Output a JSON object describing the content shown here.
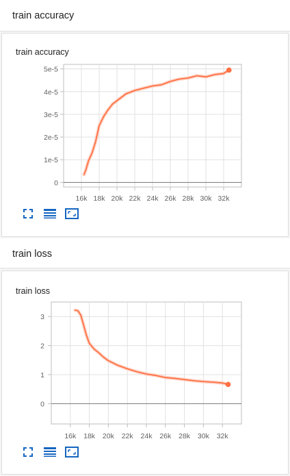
{
  "colors": {
    "accent": "#ff7043",
    "accent_light": "#ffccbc",
    "icon_blue": "#1565c0",
    "grid": "#e0e0e0",
    "axis": "#bdbdbd",
    "zero_line": "#757575"
  },
  "sections": [
    {
      "header": "train accuracy",
      "card_title": "train accuracy",
      "toolbar": [
        "fit-to-screen-icon",
        "data-table-icon",
        "fit-domain-icon"
      ]
    },
    {
      "header": "train loss",
      "card_title": "train loss",
      "toolbar": [
        "fit-to-screen-icon",
        "data-table-icon",
        "fit-domain-icon"
      ]
    }
  ],
  "chart_data": [
    {
      "type": "line",
      "title": "train accuracy",
      "xlabel": "",
      "ylabel": "",
      "xlim": [
        14000,
        34000
      ],
      "ylim": [
        -2e-06,
        5.2e-05
      ],
      "x_ticks": [
        "16k",
        "18k",
        "20k",
        "22k",
        "24k",
        "26k",
        "28k",
        "30k",
        "32k"
      ],
      "y_ticks": [
        "0",
        "1e-5",
        "2e-5",
        "3e-5",
        "4e-5",
        "5e-5"
      ],
      "grid": true,
      "series": [
        {
          "x": [
            16300,
            16500,
            16800,
            17200,
            17600,
            18000,
            18500,
            19000,
            19500,
            20000,
            20500,
            21000,
            22000,
            23000,
            24000,
            25000,
            26000,
            27000,
            28000,
            29000,
            30000,
            31000,
            32000,
            32600
          ],
          "values": [
            3.5e-06,
            5.5e-06,
            9.5e-06,
            1.3e-05,
            1.8e-05,
            2.5e-05,
            2.9e-05,
            3.2e-05,
            3.45e-05,
            3.6e-05,
            3.75e-05,
            3.9e-05,
            4.05e-05,
            4.15e-05,
            4.25e-05,
            4.3e-05,
            4.45e-05,
            4.55e-05,
            4.6e-05,
            4.7e-05,
            4.65e-05,
            4.75e-05,
            4.8e-05,
            4.95e-05
          ]
        }
      ]
    },
    {
      "type": "line",
      "title": "train loss",
      "xlabel": "",
      "ylabel": "",
      "xlim": [
        14000,
        34000
      ],
      "ylim": [
        -0.7,
        3.5
      ],
      "x_ticks": [
        "16k",
        "18k",
        "20k",
        "22k",
        "24k",
        "26k",
        "28k",
        "30k",
        "32k"
      ],
      "y_ticks": [
        "0",
        "1",
        "2",
        "3"
      ],
      "grid": true,
      "series": [
        {
          "x": [
            16500,
            16800,
            17100,
            17400,
            17700,
            18000,
            18500,
            19000,
            19500,
            20000,
            21000,
            22000,
            23000,
            24000,
            25000,
            26000,
            27000,
            28000,
            29000,
            30000,
            31000,
            32000,
            32600
          ],
          "values": [
            3.22,
            3.2,
            3.05,
            2.7,
            2.35,
            2.08,
            1.88,
            1.75,
            1.6,
            1.48,
            1.32,
            1.2,
            1.1,
            1.02,
            0.97,
            0.9,
            0.87,
            0.83,
            0.79,
            0.76,
            0.74,
            0.71,
            0.66
          ]
        }
      ]
    }
  ]
}
